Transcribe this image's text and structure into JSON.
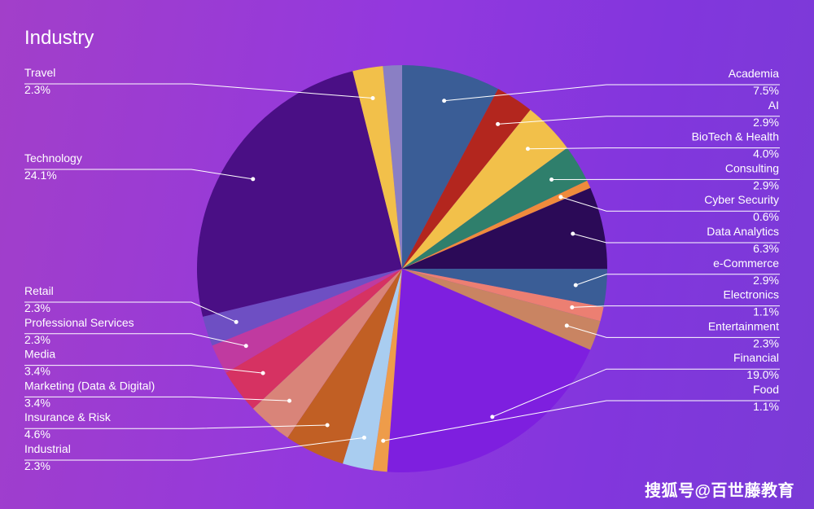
{
  "chart_data": {
    "type": "pie",
    "title": "Industry",
    "slices": [
      {
        "label": "Academia",
        "value": 7.5,
        "pct": "7.5%",
        "color": "#3a5d96"
      },
      {
        "label": "AI",
        "value": 2.9,
        "pct": "2.9%",
        "color": "#b3261e"
      },
      {
        "label": "BioTech & Health",
        "value": 4.0,
        "pct": "4.0%",
        "color": "#f2c04a"
      },
      {
        "label": "Consulting",
        "value": 2.9,
        "pct": "2.9%",
        "color": "#2f7f6c"
      },
      {
        "label": "Cyber Security",
        "value": 0.6,
        "pct": "0.6%",
        "color": "#ef8b3c"
      },
      {
        "label": "Data Analytics",
        "value": 6.3,
        "pct": "6.3%",
        "color": "#2b0a57"
      },
      {
        "label": "e-Commerce",
        "value": 2.9,
        "pct": "2.9%",
        "color": "#3a5d96"
      },
      {
        "label": "Electronics",
        "value": 1.1,
        "pct": "1.1%",
        "color": "#ec7f72"
      },
      {
        "label": "Entertainment",
        "value": 2.3,
        "pct": "2.3%",
        "color": "#c98462"
      },
      {
        "label": "Financial",
        "value": 19.0,
        "pct": "19.0%",
        "color": "#7e1fdf"
      },
      {
        "label": "Food",
        "value": 1.1,
        "pct": "1.1%",
        "color": "#ee9c4a"
      },
      {
        "label": "Industrial",
        "value": 2.3,
        "pct": "2.3%",
        "color": "#a9cdf0"
      },
      {
        "label": "Insurance & Risk",
        "value": 4.6,
        "pct": "4.6%",
        "color": "#c15f24"
      },
      {
        "label": "Marketing (Data & Digital)",
        "value": 3.4,
        "pct": "3.4%",
        "color": "#d98479"
      },
      {
        "label": "Media",
        "value": 3.4,
        "pct": "3.4%",
        "color": "#d63262"
      },
      {
        "label": "Professional Services",
        "value": 2.3,
        "pct": "2.3%",
        "color": "#c03aa0"
      },
      {
        "label": "Retail",
        "value": 2.3,
        "pct": "2.3%",
        "color": "#6e4fc3"
      },
      {
        "label": "Technology",
        "value": 24.1,
        "pct": "24.1%",
        "color": "#4a0f85"
      },
      {
        "label": "Travel",
        "value": 2.3,
        "pct": "2.3%",
        "color": "#f2c04a"
      }
    ],
    "legend_placement": "labels with leader lines"
  },
  "watermark": "搜狐号@百世藤教育"
}
